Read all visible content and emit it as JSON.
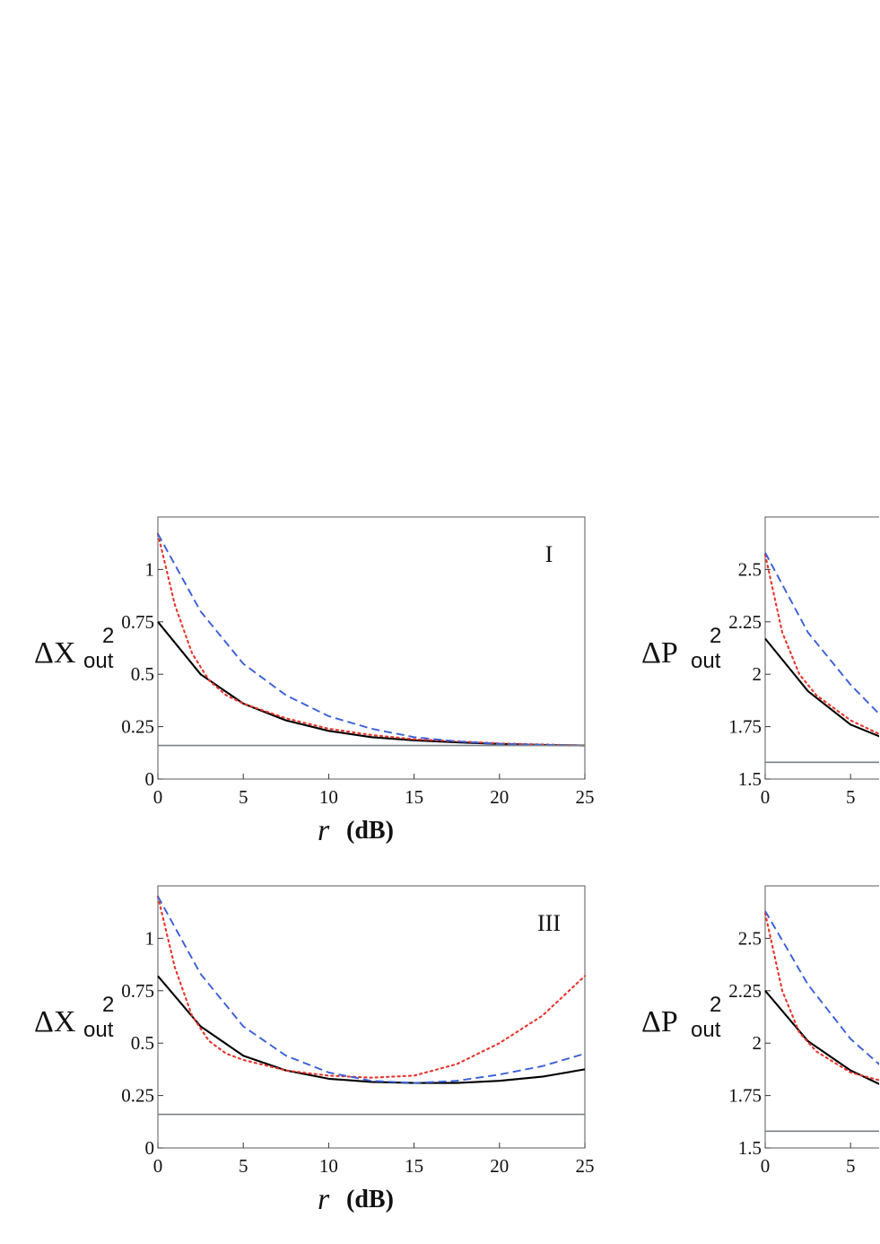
{
  "chart_data": [
    {
      "type": "line",
      "panel_label": "I",
      "ylabel": {
        "symbol": "ΔX",
        "superscript": "2",
        "subscript": "out"
      },
      "xlabel": {
        "symbol": "r",
        "unit": "(dB)"
      },
      "xlim": [
        0,
        25
      ],
      "ylim": [
        0,
        1.25
      ],
      "xticks": [
        0,
        5,
        10,
        15,
        20,
        25
      ],
      "yticks": [
        0,
        0.25,
        0.5,
        0.75,
        1
      ],
      "ytick_labels": [
        "0",
        "0.25",
        "0.5",
        "0.75",
        "1"
      ],
      "grid": false,
      "series": [
        {
          "style": "solid",
          "color": "#000000",
          "x": [
            0,
            2.5,
            5,
            7.5,
            10,
            12.5,
            15,
            17.5,
            20,
            22.5,
            25
          ],
          "y": [
            0.75,
            0.5,
            0.36,
            0.28,
            0.23,
            0.2,
            0.185,
            0.175,
            0.168,
            0.163,
            0.16
          ]
        },
        {
          "style": "dotted",
          "color": "#e8352b",
          "x": [
            0,
            1,
            2,
            3,
            4,
            5,
            7.5,
            10,
            12.5,
            15,
            20,
            25
          ],
          "y": [
            1.17,
            0.83,
            0.6,
            0.47,
            0.4,
            0.36,
            0.29,
            0.24,
            0.21,
            0.19,
            0.17,
            0.16
          ]
        },
        {
          "style": "dashed",
          "color": "#3a5fd8",
          "x": [
            0,
            2.5,
            5,
            7.5,
            10,
            12.5,
            15,
            17.5,
            20,
            25
          ],
          "y": [
            1.17,
            0.8,
            0.55,
            0.4,
            0.3,
            0.24,
            0.2,
            0.18,
            0.168,
            0.16
          ]
        },
        {
          "style": "solid",
          "color": "#7a8085",
          "x": [
            0,
            25
          ],
          "y": [
            0.16,
            0.16
          ]
        }
      ]
    },
    {
      "type": "line",
      "panel_label": "",
      "ylabel": {
        "symbol": "ΔP",
        "superscript": "2",
        "subscript": "out"
      },
      "xlim": [
        0,
        6.8
      ],
      "ylim": [
        1.5,
        2.75
      ],
      "xticks": [
        0,
        5
      ],
      "yticks": [
        1.5,
        1.75,
        2,
        2.25,
        2.5
      ],
      "ytick_labels": [
        "1.5",
        "1.75",
        "2",
        "2.25",
        "2.5"
      ],
      "grid": false,
      "series": [
        {
          "style": "solid",
          "color": "#000000",
          "x": [
            0,
            2.5,
            5,
            6.8
          ],
          "y": [
            2.17,
            1.92,
            1.76,
            1.7
          ]
        },
        {
          "style": "dotted",
          "color": "#e8352b",
          "x": [
            0,
            1,
            2,
            3,
            5,
            6.8
          ],
          "y": [
            2.57,
            2.2,
            2.0,
            1.9,
            1.78,
            1.71
          ]
        },
        {
          "style": "dashed",
          "color": "#3a5fd8",
          "x": [
            0,
            2.5,
            5,
            6.8
          ],
          "y": [
            2.58,
            2.2,
            1.95,
            1.8
          ]
        },
        {
          "style": "solid",
          "color": "#7a8085",
          "x": [
            0,
            6.8
          ],
          "y": [
            1.58,
            1.58
          ]
        }
      ]
    },
    {
      "type": "line",
      "panel_label": "III",
      "ylabel": {
        "symbol": "ΔX",
        "superscript": "2",
        "subscript": "out"
      },
      "xlabel": {
        "symbol": "r",
        "unit": "(dB)"
      },
      "xlim": [
        0,
        25
      ],
      "ylim": [
        0,
        1.25
      ],
      "xticks": [
        0,
        5,
        10,
        15,
        20,
        25
      ],
      "yticks": [
        0,
        0.25,
        0.5,
        0.75,
        1
      ],
      "ytick_labels": [
        "0",
        "0.25",
        "0.5",
        "0.75",
        "1"
      ],
      "grid": false,
      "series": [
        {
          "style": "solid",
          "color": "#000000",
          "x": [
            0,
            2.5,
            5,
            7.5,
            10,
            12.5,
            15,
            17.5,
            20,
            22.5,
            25
          ],
          "y": [
            0.82,
            0.58,
            0.44,
            0.37,
            0.33,
            0.315,
            0.31,
            0.31,
            0.32,
            0.34,
            0.375
          ]
        },
        {
          "style": "dotted",
          "color": "#e8352b",
          "x": [
            0,
            1,
            2,
            3,
            4,
            5,
            7.5,
            10,
            12.5,
            15,
            17.5,
            20,
            22.5,
            25
          ],
          "y": [
            1.2,
            0.86,
            0.63,
            0.51,
            0.45,
            0.42,
            0.37,
            0.345,
            0.335,
            0.345,
            0.4,
            0.5,
            0.63,
            0.82
          ]
        },
        {
          "style": "dashed",
          "color": "#3a5fd8",
          "x": [
            0,
            2.5,
            5,
            7.5,
            10,
            12.5,
            15,
            17.5,
            20,
            22.5,
            25
          ],
          "y": [
            1.2,
            0.83,
            0.58,
            0.44,
            0.36,
            0.32,
            0.31,
            0.32,
            0.35,
            0.39,
            0.45
          ]
        },
        {
          "style": "solid",
          "color": "#7a8085",
          "x": [
            0,
            25
          ],
          "y": [
            0.16,
            0.16
          ]
        }
      ]
    },
    {
      "type": "line",
      "panel_label": "",
      "ylabel": {
        "symbol": "ΔP",
        "superscript": "2",
        "subscript": "out"
      },
      "xlim": [
        0,
        6.8
      ],
      "ylim": [
        1.5,
        2.75
      ],
      "xticks": [
        0,
        5
      ],
      "yticks": [
        1.5,
        1.75,
        2,
        2.25,
        2.5
      ],
      "ytick_labels": [
        "1.5",
        "1.75",
        "2",
        "2.25",
        "2.5"
      ],
      "grid": false,
      "series": [
        {
          "style": "solid",
          "color": "#000000",
          "x": [
            0,
            2.5,
            5,
            6.8
          ],
          "y": [
            2.25,
            2.01,
            1.87,
            1.8
          ]
        },
        {
          "style": "dotted",
          "color": "#e8352b",
          "x": [
            0,
            1,
            2,
            3,
            5,
            6.8
          ],
          "y": [
            2.62,
            2.25,
            2.05,
            1.96,
            1.86,
            1.82
          ]
        },
        {
          "style": "dashed",
          "color": "#3a5fd8",
          "x": [
            0,
            2.5,
            5,
            6.8
          ],
          "y": [
            2.63,
            2.28,
            2.02,
            1.89
          ]
        },
        {
          "style": "solid",
          "color": "#7a8085",
          "x": [
            0,
            6.8
          ],
          "y": [
            1.58,
            1.58
          ]
        }
      ]
    }
  ]
}
